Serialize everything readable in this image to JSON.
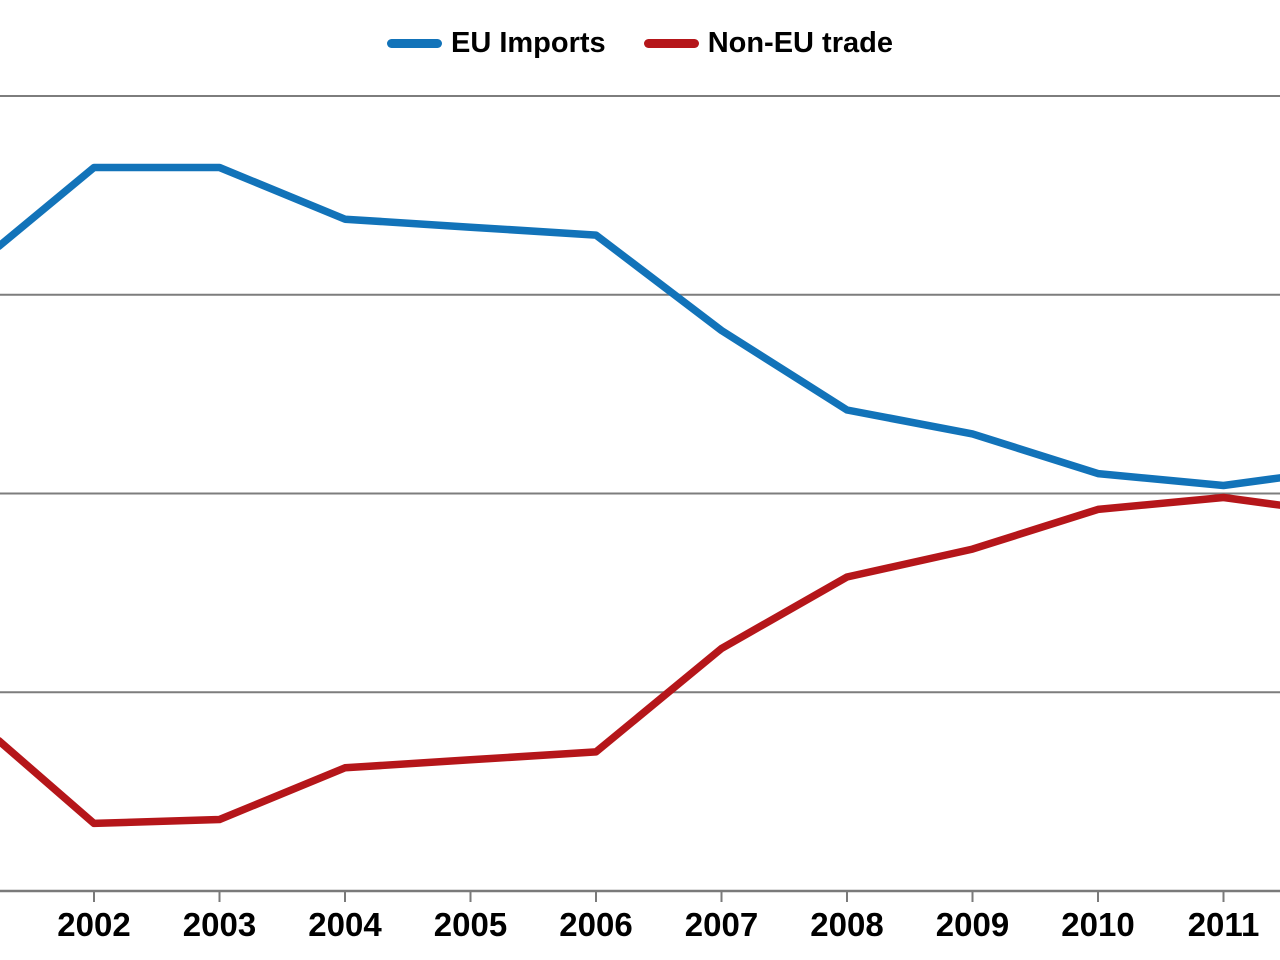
{
  "chart_data": {
    "type": "line",
    "title": "",
    "xlabel": "",
    "ylabel": "",
    "legend_position": "top-center",
    "grid": true,
    "x_tick_labels": [
      "2002",
      "2003",
      "2004",
      "2005",
      "2006",
      "2007",
      "2008",
      "2009",
      "2010",
      "2011"
    ],
    "x_visible_range_years": [
      2001.25,
      2011.45
    ],
    "ylim": [
      40,
      62.4
    ],
    "gridline_values": [
      60,
      55,
      50,
      45
    ],
    "baseline_axis_value": 40,
    "y_unit": "percent (implied, no y-axis labels visible)",
    "series": [
      {
        "name": "EU Imports",
        "color": "#1273b9",
        "x": [
          2001.25,
          2002,
          2003,
          2004,
          2005,
          2006,
          2007,
          2008,
          2009,
          2010,
          2011,
          2011.45
        ],
        "values": [
          56.2,
          58.2,
          58.2,
          56.9,
          56.7,
          56.5,
          54.1,
          52.1,
          51.5,
          50.5,
          50.2,
          50.4
        ]
      },
      {
        "name": "Non-EU trade",
        "color": "#b5161a",
        "x": [
          2001.25,
          2002,
          2003,
          2004,
          2005,
          2006,
          2007,
          2008,
          2009,
          2010,
          2011,
          2011.45
        ],
        "values": [
          43.8,
          41.7,
          41.8,
          43.1,
          43.3,
          43.5,
          46.1,
          47.9,
          48.6,
          49.6,
          49.9,
          49.7
        ]
      }
    ],
    "colors": {
      "gridline": "#7d7d7d",
      "axis": "#7a7a7a",
      "text": "#000000",
      "background": "#ffffff"
    }
  }
}
